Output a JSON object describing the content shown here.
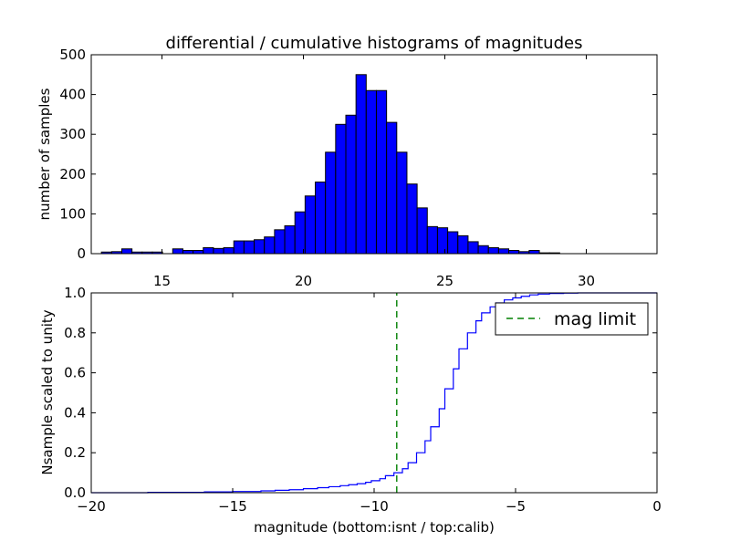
{
  "chart_data": [
    {
      "type": "bar",
      "title": "differential / cumulative histograms of magnitudes",
      "ylabel": "number of samples",
      "xlabel": "",
      "xlim": [
        12.5,
        32.5
      ],
      "ylim": [
        0,
        500
      ],
      "xticks": [
        "15",
        "20",
        "25",
        "30"
      ],
      "yticks": [
        "0",
        "100",
        "200",
        "300",
        "400",
        "500"
      ],
      "bin_width": 0.36,
      "bin_start": 12.5,
      "counts": [
        0,
        4,
        5,
        12,
        4,
        4,
        4,
        0,
        12,
        8,
        8,
        15,
        13,
        15,
        32,
        32,
        35,
        42,
        60,
        70,
        105,
        145,
        180,
        255,
        325,
        348,
        450,
        410,
        410,
        330,
        255,
        175,
        115,
        68,
        65,
        55,
        45,
        30,
        20,
        15,
        12,
        8,
        5,
        8,
        2,
        2,
        0,
        0,
        0,
        0,
        0,
        0,
        0,
        0,
        0
      ],
      "bar_color": "#0000ff"
    },
    {
      "type": "line",
      "xlabel": "magnitude (bottom:isnt / top:calib)",
      "ylabel": "Nsample scaled to unity",
      "xlim": [
        -20,
        0
      ],
      "ylim": [
        0,
        1
      ],
      "xticks": [
        "−20",
        "−15",
        "−10",
        "−5",
        "0"
      ],
      "yticks": [
        "0.0",
        "0.2",
        "0.4",
        "0.6",
        "0.8",
        "1.0"
      ],
      "series": [
        {
          "color": "#0000ff",
          "x": [
            -20,
            -18,
            -16,
            -15,
            -14,
            -13.5,
            -13,
            -12.5,
            -12,
            -11.6,
            -11.2,
            -10.9,
            -10.6,
            -10.3,
            -10.1,
            -9.8,
            -9.6,
            -9.3,
            -9.0,
            -8.8,
            -8.5,
            -8.2,
            -8.0,
            -7.7,
            -7.5,
            -7.2,
            -7.0,
            -6.7,
            -6.4,
            -6.2,
            -5.9,
            -5.7,
            -5.4,
            -5.1,
            -4.8,
            -4.5,
            -4.2,
            -3.8,
            -3.3,
            -2.8,
            -2.0,
            -1.0,
            0
          ],
          "y": [
            0.0,
            0.002,
            0.004,
            0.006,
            0.009,
            0.012,
            0.015,
            0.02,
            0.025,
            0.03,
            0.035,
            0.04,
            0.045,
            0.052,
            0.06,
            0.07,
            0.085,
            0.1,
            0.12,
            0.15,
            0.2,
            0.26,
            0.33,
            0.42,
            0.52,
            0.62,
            0.72,
            0.8,
            0.86,
            0.9,
            0.93,
            0.95,
            0.965,
            0.975,
            0.983,
            0.99,
            0.994,
            0.997,
            0.999,
            1.0,
            1.0,
            1.0,
            1.0
          ]
        },
        {
          "name": "mag limit",
          "color": "#008000",
          "x": [
            -9.2,
            -9.2
          ],
          "y": [
            0,
            1
          ]
        }
      ],
      "legend": "top-right"
    }
  ]
}
